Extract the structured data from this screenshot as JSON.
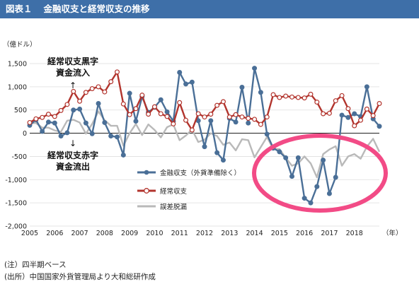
{
  "header": {
    "figure_number": "図表１",
    "title": "金融収支と経常収支の推移"
  },
  "footnotes": {
    "note": "(注）四半期ベース",
    "source": "(出所）中国国家外貨管理局より大和総研作成"
  },
  "colors": {
    "header_bg": "#3e6fa8",
    "financial": "#4a6f97",
    "current": "#b2342d",
    "errors": "#b9b9b9",
    "highlight": "#f24b86"
  },
  "chart_data": {
    "type": "line",
    "ylabel": "（億ドル）",
    "xlabel": "（年）",
    "ylim": [
      -2000,
      1500
    ],
    "yticks": [
      1500,
      1000,
      500,
      0,
      -500,
      -1000,
      -1500,
      -2000
    ],
    "ytick_labels": [
      "1,500",
      "1,000",
      "500",
      "0",
      "-500",
      "-1,000",
      "-1,500",
      "-2,000"
    ],
    "x_tick_labels": [
      "2005",
      "2006",
      "2007",
      "2008",
      "2009",
      "2010",
      "2011",
      "2012",
      "2013",
      "2014",
      "2015",
      "2016",
      "2017",
      "2018"
    ],
    "x_start_year": 2005,
    "x_end_year": 2019,
    "quarter_start": 2005.0,
    "quarter_step": 0.25,
    "legend": {
      "placement": "center",
      "financial": "金融収支（外貨準備除く）",
      "current": "経常収支",
      "errors": "誤差脱漏"
    },
    "annotations": {
      "surplus_line1": "経常収支黒字",
      "surplus_line2": "資金流入",
      "deficit_line1": "経常収支赤字",
      "deficit_line2": "資金流出"
    },
    "series": [
      {
        "name": "金融収支（外貨準備除く）",
        "values": [
          170,
          290,
          40,
          240,
          220,
          -60,
          10,
          500,
          520,
          220,
          -10,
          640,
          230,
          -60,
          -80,
          -470,
          860,
          260,
          790,
          450,
          560,
          720,
          460,
          260,
          1310,
          1060,
          1100,
          270,
          -290,
          270,
          -420,
          -580,
          320,
          240,
          990,
          220,
          1400,
          880,
          -20,
          -320,
          -400,
          -530,
          -930,
          -530,
          -1400,
          -1500,
          -1150,
          -580,
          -1300,
          -950,
          390,
          340,
          420,
          360,
          1000,
          310,
          150
        ]
      },
      {
        "name": "経常収支",
        "values": [
          230,
          310,
          340,
          410,
          360,
          490,
          620,
          900,
          690,
          880,
          960,
          1000,
          890,
          1110,
          1320,
          630,
          400,
          530,
          820,
          410,
          570,
          420,
          360,
          200,
          660,
          280,
          70,
          420,
          350,
          410,
          600,
          680,
          350,
          400,
          350,
          320,
          300,
          190,
          350,
          830,
          770,
          800,
          780,
          770,
          760,
          840,
          670,
          420,
          430,
          700,
          810,
          530,
          160,
          280,
          520,
          380,
          640
        ]
      },
      {
        "name": "誤差脱漏",
        "values": [
          210,
          220,
          120,
          120,
          60,
          30,
          270,
          290,
          230,
          -10,
          200,
          470,
          280,
          160,
          160,
          -270,
          0,
          200,
          -40,
          190,
          70,
          -90,
          130,
          190,
          -150,
          -50,
          80,
          -190,
          -140,
          0,
          -60,
          -250,
          -200,
          -370,
          -130,
          -150,
          -520,
          -300,
          -80,
          -340,
          -340,
          -530,
          -700,
          -650,
          -500,
          -650,
          -950,
          -450,
          -350,
          -280,
          -700,
          -500,
          -450,
          -550,
          -290,
          -120,
          -400
        ]
      }
    ]
  }
}
